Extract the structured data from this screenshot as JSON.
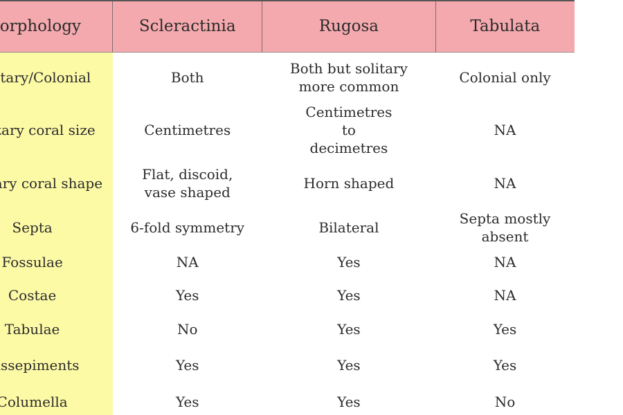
{
  "table": {
    "headers": [
      "Morphology",
      "Scleractinia",
      "Rugosa",
      "Tabulata"
    ],
    "rows": [
      {
        "label": "Solitary/Colonial",
        "scleractinia": "Both",
        "rugosa": "Both but solitary more common",
        "tabulata": "Colonial only"
      },
      {
        "label": "Solitary coral size",
        "scleractinia": "Centimetres",
        "rugosa": "Centimetres to decimetres",
        "tabulata": "NA"
      },
      {
        "label": "Solitary coral shape",
        "scleractinia": "Flat, discoid, vase shaped",
        "rugosa": "Horn shaped",
        "tabulata": "NA"
      },
      {
        "label": "Septa",
        "scleractinia": "6-fold symmetry",
        "rugosa": "Bilateral",
        "tabulata": "Septa mostly absent"
      },
      {
        "label": "Fossulae",
        "scleractinia": "NA",
        "rugosa": "Yes",
        "tabulata": "NA"
      },
      {
        "label": "Costae",
        "scleractinia": "Yes",
        "rugosa": "Yes",
        "tabulata": "NA"
      },
      {
        "label": "Tabulae",
        "scleractinia": "No",
        "rugosa": "Yes",
        "tabulata": "Yes"
      },
      {
        "label": "Dissepiments",
        "scleractinia": "Yes",
        "rugosa": "Yes",
        "tabulata": "Yes"
      },
      {
        "label": "Columella",
        "scleractinia": "Yes",
        "rugosa": "Yes",
        "tabulata": "No"
      }
    ]
  }
}
